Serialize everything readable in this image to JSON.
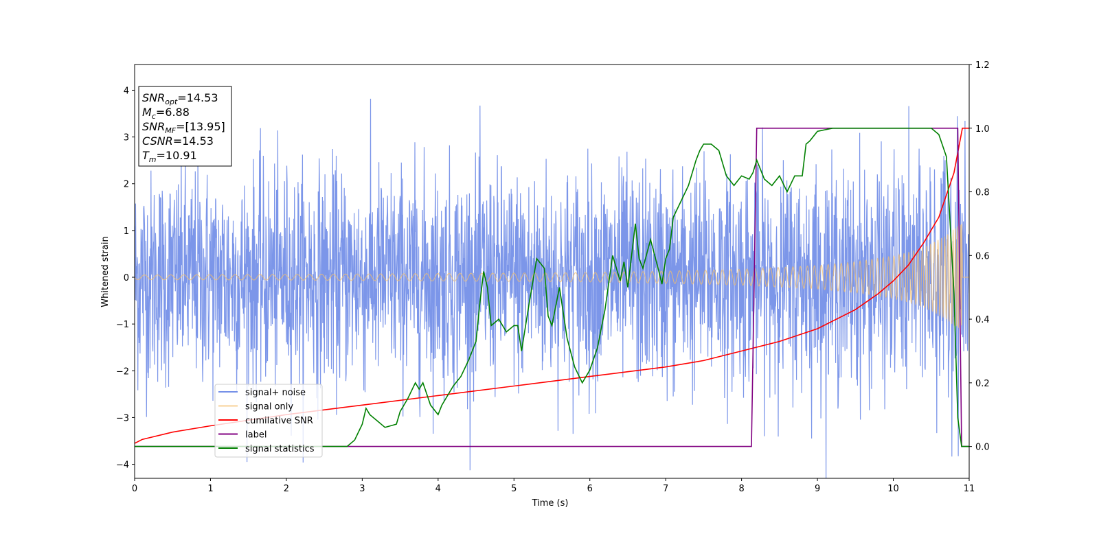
{
  "chart_data": {
    "type": "line",
    "xlabel": "Time (s)",
    "ylabel": "Whitened strain",
    "xlim": [
      0,
      11
    ],
    "ylim": [
      -4.3,
      4.55
    ],
    "y2lim": [
      -0.1,
      1.2
    ],
    "xticks": [
      0,
      1,
      2,
      3,
      4,
      5,
      6,
      7,
      8,
      9,
      10,
      11
    ],
    "yticks": [
      -4,
      -3,
      -2,
      -1,
      0,
      1,
      2,
      3,
      4
    ],
    "y2ticks": [
      "0.0",
      "0.2",
      "0.4",
      "0.6",
      "0.8",
      "1.0",
      "1.2"
    ],
    "legend_position": "lower-left",
    "annotation": {
      "lines": [
        {
          "label": "SNR",
          "sub": "opt",
          "value": "=14.53"
        },
        {
          "label": "M",
          "sub": "c",
          "value": "=6.88"
        },
        {
          "label": "SNR",
          "sub": "MF",
          "value": "=[13.95]"
        },
        {
          "label": "CSNR",
          "sub": "",
          "value": "=14.53"
        },
        {
          "label": "T",
          "sub": "m",
          "value": "=10.91"
        }
      ]
    },
    "series": [
      {
        "name": "signal+ noise",
        "color": "#7590e8",
        "axis": "left",
        "description_values": {
          "noise_amplitude_typical": 1.2,
          "noise_peak": 4.2,
          "t_end": 10.91
        }
      },
      {
        "name": "signal only",
        "color": "#f5bf6b",
        "axis": "left",
        "envelope": [
          [
            0,
            0.05
          ],
          [
            2,
            0.06
          ],
          [
            4,
            0.08
          ],
          [
            6,
            0.1
          ],
          [
            7,
            0.13
          ],
          [
            8,
            0.17
          ],
          [
            9,
            0.25
          ],
          [
            9.5,
            0.33
          ],
          [
            10,
            0.45
          ],
          [
            10.3,
            0.58
          ],
          [
            10.5,
            0.72
          ],
          [
            10.7,
            0.9
          ],
          [
            10.85,
            1.1
          ],
          [
            10.91,
            1.25
          ]
        ]
      },
      {
        "name": "cumilative SNR",
        "color": "#ff0000",
        "axis": "right",
        "x": [
          0,
          0.1,
          0.5,
          1,
          2,
          3,
          4,
          5,
          6,
          7,
          7.5,
          8,
          8.5,
          9,
          9.5,
          9.8,
          10,
          10.2,
          10.4,
          10.6,
          10.8,
          10.91,
          11
        ],
        "y": [
          0.01,
          0.022,
          0.045,
          0.065,
          0.1,
          0.13,
          0.16,
          0.19,
          0.22,
          0.25,
          0.27,
          0.3,
          0.33,
          0.37,
          0.43,
          0.48,
          0.52,
          0.57,
          0.64,
          0.72,
          0.86,
          1.0,
          1.0
        ]
      },
      {
        "name": "label",
        "color": "#800080",
        "axis": "right",
        "x": [
          0,
          8.13,
          8.2,
          10.85,
          10.9,
          11
        ],
        "y": [
          0,
          0,
          1,
          1,
          0,
          0
        ]
      },
      {
        "name": "signal statistics",
        "color": "#008000",
        "axis": "right",
        "x": [
          0,
          2.8,
          2.9,
          3.0,
          3.05,
          3.1,
          3.2,
          3.3,
          3.45,
          3.5,
          3.6,
          3.7,
          3.75,
          3.8,
          3.9,
          4.0,
          4.05,
          4.1,
          4.2,
          4.3,
          4.4,
          4.5,
          4.55,
          4.6,
          4.65,
          4.7,
          4.8,
          4.9,
          5.0,
          5.05,
          5.1,
          5.2,
          5.3,
          5.4,
          5.45,
          5.5,
          5.6,
          5.7,
          5.8,
          5.9,
          6.0,
          6.1,
          6.2,
          6.3,
          6.4,
          6.45,
          6.5,
          6.6,
          6.65,
          6.7,
          6.8,
          6.9,
          6.95,
          7.0,
          7.05,
          7.1,
          7.2,
          7.3,
          7.4,
          7.45,
          7.5,
          7.6,
          7.7,
          7.8,
          7.9,
          8.0,
          8.1,
          8.15,
          8.2,
          8.3,
          8.4,
          8.5,
          8.6,
          8.7,
          8.8,
          8.85,
          8.9,
          9.0,
          9.2,
          9.5,
          10.0,
          10.5,
          10.6,
          10.7,
          10.8,
          10.85,
          10.9,
          11.0
        ],
        "y": [
          0.0,
          0.0,
          0.02,
          0.07,
          0.12,
          0.1,
          0.08,
          0.06,
          0.07,
          0.11,
          0.15,
          0.2,
          0.18,
          0.2,
          0.13,
          0.1,
          0.13,
          0.15,
          0.19,
          0.22,
          0.27,
          0.33,
          0.45,
          0.55,
          0.5,
          0.38,
          0.4,
          0.36,
          0.38,
          0.38,
          0.3,
          0.45,
          0.59,
          0.56,
          0.41,
          0.38,
          0.5,
          0.34,
          0.25,
          0.2,
          0.24,
          0.31,
          0.43,
          0.6,
          0.52,
          0.58,
          0.5,
          0.7,
          0.59,
          0.56,
          0.65,
          0.56,
          0.51,
          0.59,
          0.62,
          0.72,
          0.77,
          0.82,
          0.9,
          0.93,
          0.95,
          0.95,
          0.93,
          0.85,
          0.82,
          0.85,
          0.84,
          0.86,
          0.9,
          0.84,
          0.82,
          0.85,
          0.8,
          0.85,
          0.85,
          0.95,
          0.96,
          0.99,
          1.0,
          1.0,
          1.0,
          1.0,
          0.98,
          0.91,
          0.48,
          0.09,
          0.0,
          0.0
        ]
      }
    ]
  }
}
